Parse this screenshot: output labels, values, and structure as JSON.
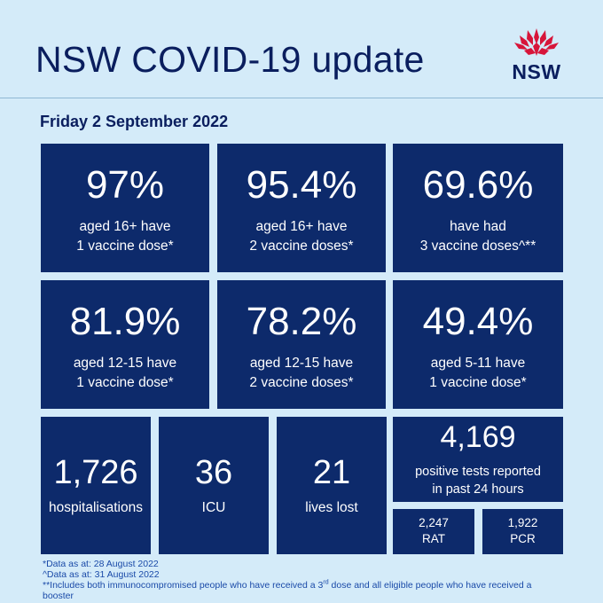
{
  "header": {
    "title": "NSW COVID-19 update",
    "logo_text": "NSW",
    "date": "Friday 2 September 2022"
  },
  "tiles": [
    {
      "value": "97%",
      "line1": "aged 16+ have",
      "line2": "1 vaccine dose*"
    },
    {
      "value": "95.4%",
      "line1": "aged 16+ have",
      "line2": "2 vaccine doses*"
    },
    {
      "value": "69.6%",
      "line1": "have had",
      "line2": "3 vaccine doses^**"
    },
    {
      "value": "81.9%",
      "line1": "aged 12-15 have",
      "line2": "1 vaccine dose*"
    },
    {
      "value": "78.2%",
      "line1": "aged 12-15 have",
      "line2": "2 vaccine doses*"
    },
    {
      "value": "49.4%",
      "line1": "aged 5-11 have",
      "line2": "1 vaccine dose*"
    }
  ],
  "stats": {
    "hospitalisations": {
      "value": "1,726",
      "label": "hospitalisations"
    },
    "icu": {
      "value": "36",
      "label": "ICU"
    },
    "lives_lost": {
      "value": "21",
      "label": "lives lost"
    },
    "positive": {
      "value": "4,169",
      "line1": "positive tests reported",
      "line2": "in past 24 hours"
    },
    "rat": {
      "value": "2,247",
      "label": "RAT"
    },
    "pcr": {
      "value": "1,922",
      "label": "PCR"
    }
  },
  "notes": {
    "note1": "*Data as at: 28 August 2022",
    "note2": "^Data as at: 31 August 2022",
    "note3_a": "**Includes both immunocompromised  people who have received a 3",
    "note3_sup": "rd",
    "note3_b": " dose and all eligible people  who have received a",
    "note4": "booster"
  },
  "colors": {
    "background": "#d4ebf9",
    "tile": "#0d2a6b",
    "title": "#0a1e5e",
    "waratah": "#d7153a"
  },
  "icons": {
    "logo": "nsw-waratah-logo"
  }
}
